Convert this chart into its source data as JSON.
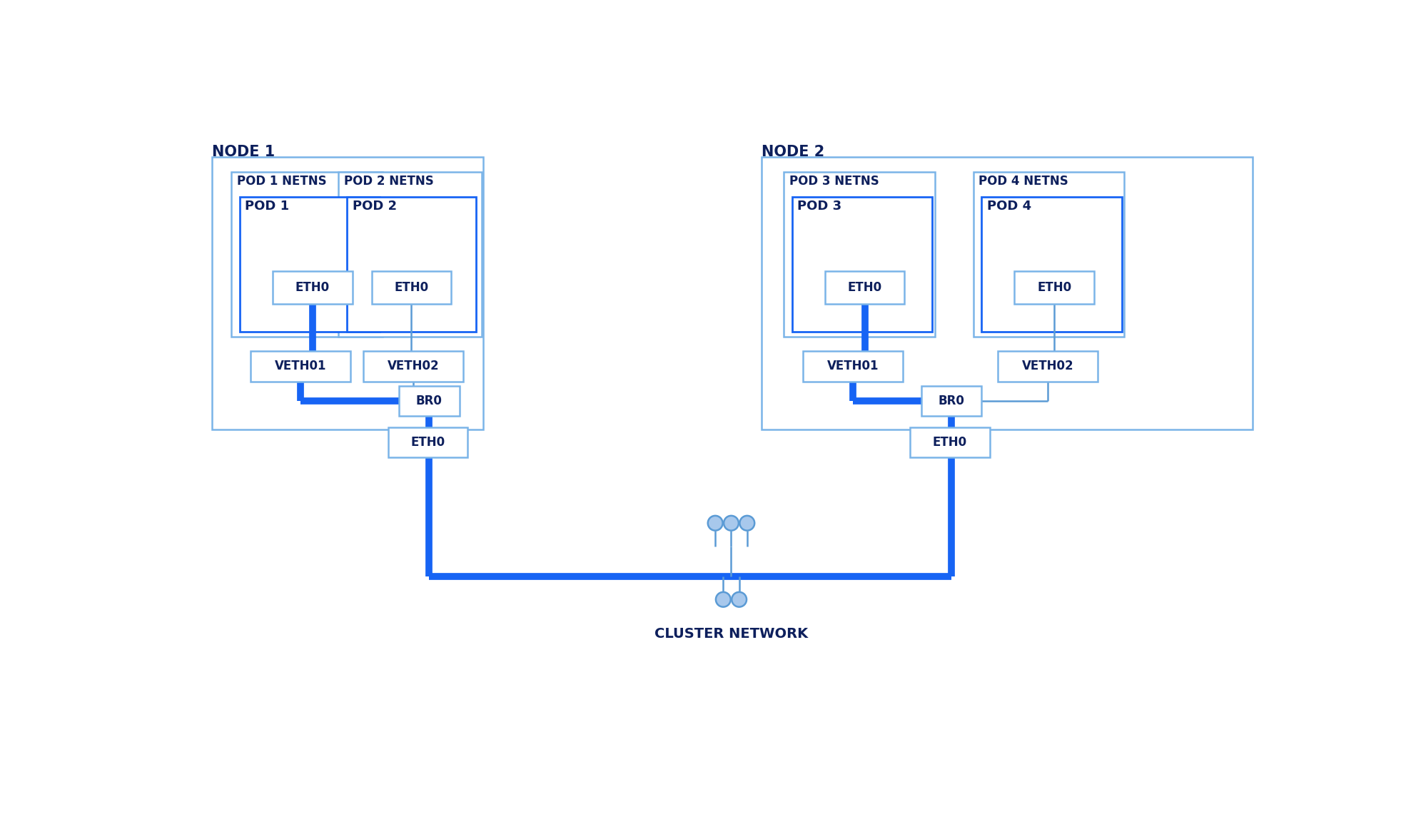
{
  "bg_color": "#ffffff",
  "line_color_thick": "#1764f4",
  "line_color_thin": "#5b9bd5",
  "box_border_dark": "#1764f4",
  "box_border_light": "#7ab4e8",
  "box_fill": "#ffffff",
  "text_color_dark": "#0d1f5c",
  "node1_label": "NODE 1",
  "node2_label": "NODE 2",
  "pod1_netns": "POD 1 NETNS",
  "pod2_netns": "POD 2 NETNS",
  "pod3_netns": "POD 3 NETNS",
  "pod4_netns": "POD 4 NETNS",
  "pod1_label": "POD 1",
  "pod2_label": "POD 2",
  "pod3_label": "POD 3",
  "pod4_label": "POD 4",
  "eth0": "ETH0",
  "veth01": "VETH01",
  "veth02": "VETH02",
  "br0": "BR0",
  "cluster_network": "CLUSTER NETWORK",
  "thick_lw": 7,
  "thin_lw": 1.8,
  "font_size_label": 13,
  "font_size_node": 15,
  "font_size_cluster": 13
}
